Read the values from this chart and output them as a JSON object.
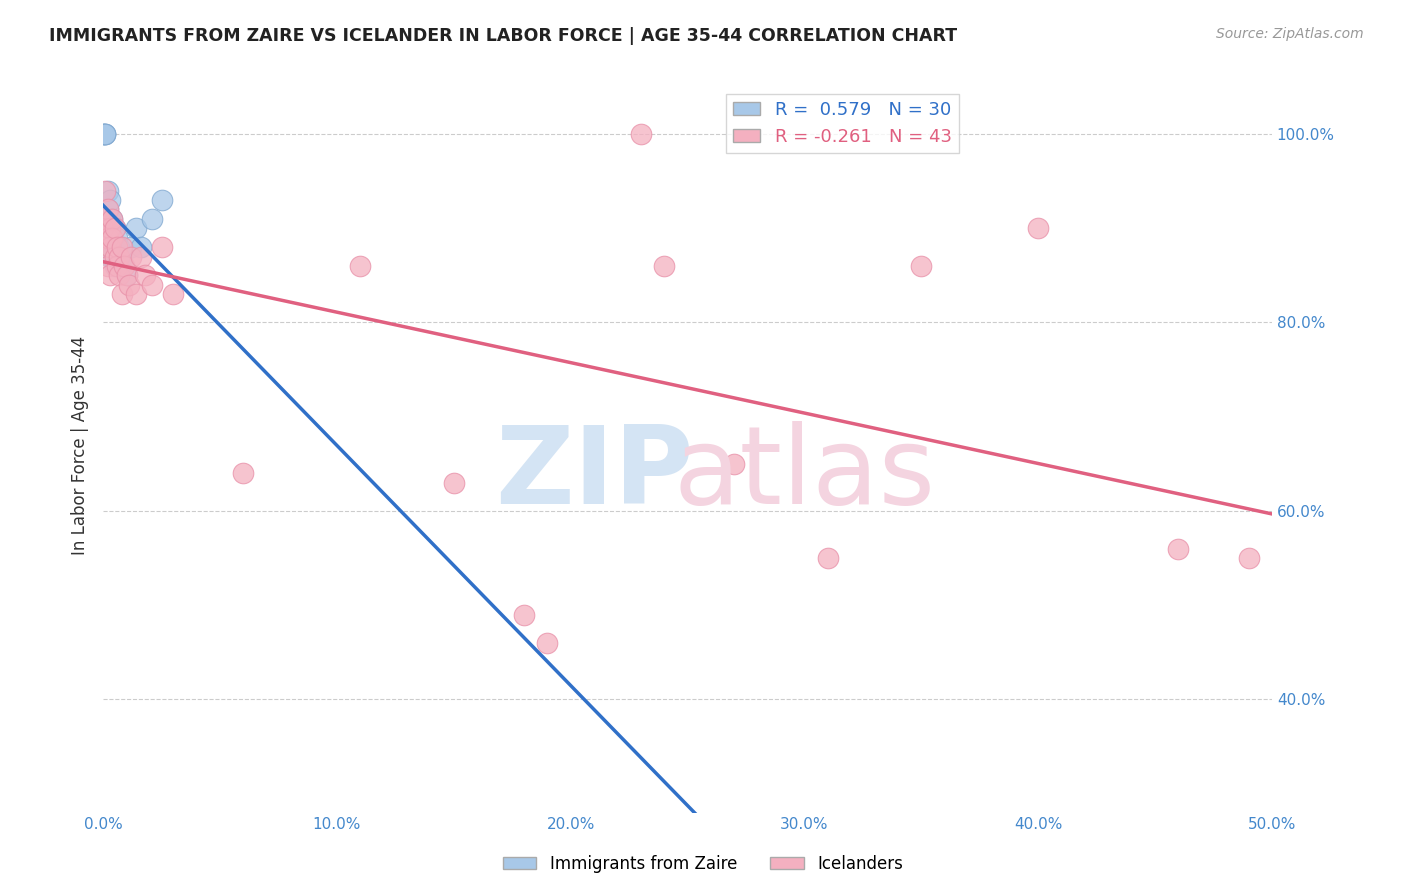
{
  "title": "IMMIGRANTS FROM ZAIRE VS ICELANDER IN LABOR FORCE | AGE 35-44 CORRELATION CHART",
  "source_text": "Source: ZipAtlas.com",
  "ylabel": "In Labor Force | Age 35-44",
  "xlim": [
    0.0,
    0.5
  ],
  "ylim": [
    0.28,
    1.06
  ],
  "xtick_labels": [
    "0.0%",
    "10.0%",
    "20.0%",
    "30.0%",
    "40.0%",
    "50.0%"
  ],
  "xtick_vals": [
    0.0,
    0.1,
    0.2,
    0.3,
    0.4,
    0.5
  ],
  "ytick_labels": [
    "40.0%",
    "60.0%",
    "80.0%",
    "100.0%"
  ],
  "ytick_vals": [
    0.4,
    0.6,
    0.8,
    1.0
  ],
  "blue_R": 0.579,
  "blue_N": 30,
  "pink_R": -0.261,
  "pink_N": 43,
  "blue_color": "#a8c8e8",
  "pink_color": "#f4b0c0",
  "blue_edge_color": "#80a8d0",
  "pink_edge_color": "#e890a8",
  "blue_line_color": "#3070c8",
  "pink_line_color": "#e06080",
  "blue_scatter_x": [
    0.0,
    0.0,
    0.001,
    0.001,
    0.001,
    0.002,
    0.002,
    0.002,
    0.002,
    0.003,
    0.003,
    0.003,
    0.003,
    0.004,
    0.004,
    0.004,
    0.005,
    0.005,
    0.005,
    0.006,
    0.006,
    0.007,
    0.008,
    0.009,
    0.01,
    0.012,
    0.014,
    0.016,
    0.021,
    0.025
  ],
  "blue_scatter_y": [
    1.0,
    1.0,
    1.0,
    1.0,
    1.0,
    0.94,
    0.92,
    0.9,
    0.88,
    0.91,
    0.93,
    0.88,
    0.87,
    0.91,
    0.89,
    0.87,
    0.9,
    0.88,
    0.86,
    0.89,
    0.87,
    0.88,
    0.87,
    0.86,
    0.85,
    0.88,
    0.9,
    0.88,
    0.91,
    0.93
  ],
  "pink_scatter_x": [
    0.0,
    0.0,
    0.001,
    0.001,
    0.002,
    0.002,
    0.002,
    0.003,
    0.003,
    0.003,
    0.004,
    0.004,
    0.005,
    0.005,
    0.006,
    0.006,
    0.007,
    0.007,
    0.008,
    0.008,
    0.009,
    0.01,
    0.011,
    0.012,
    0.014,
    0.016,
    0.018,
    0.021,
    0.025,
    0.03,
    0.06,
    0.11,
    0.15,
    0.18,
    0.19,
    0.23,
    0.24,
    0.27,
    0.31,
    0.35,
    0.4,
    0.46,
    0.49
  ],
  "pink_scatter_y": [
    0.9,
    0.88,
    0.91,
    0.94,
    0.92,
    0.89,
    0.86,
    0.9,
    0.88,
    0.85,
    0.91,
    0.89,
    0.87,
    0.9,
    0.88,
    0.86,
    0.87,
    0.85,
    0.88,
    0.83,
    0.86,
    0.85,
    0.84,
    0.87,
    0.83,
    0.87,
    0.85,
    0.84,
    0.88,
    0.83,
    0.64,
    0.86,
    0.63,
    0.49,
    0.46,
    1.0,
    0.86,
    0.65,
    0.55,
    0.86,
    0.9,
    0.56,
    0.55
  ],
  "blue_line_x_start": 0.0,
  "blue_line_x_end": 0.5,
  "pink_line_x_start": 0.0,
  "pink_line_x_end": 0.5,
  "watermark_zip_color": "#d4e4f4",
  "watermark_atlas_color": "#f4d4e0"
}
